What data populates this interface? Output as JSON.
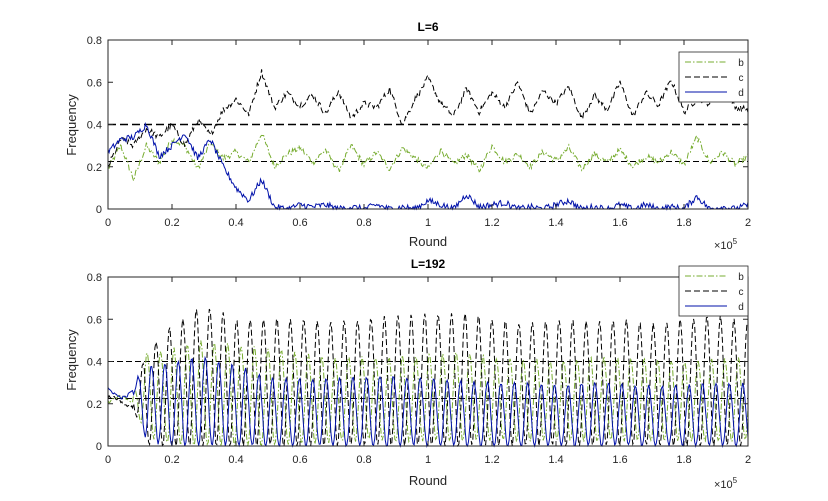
{
  "chart_data": [
    {
      "type": "line",
      "title": "L=6",
      "xlabel": "Round",
      "ylabel": "Frequency",
      "xlim": [
        0,
        200000
      ],
      "ylim": [
        0,
        0.8
      ],
      "x_ticks": [
        "0",
        "0.2",
        "0.4",
        "0.6",
        "0.8",
        "1",
        "1.2",
        "1.4",
        "1.6",
        "1.8",
        "2"
      ],
      "y_ticks": [
        "0",
        "0.2",
        "0.4",
        "0.6",
        "0.8"
      ],
      "x_exponent": "×10",
      "x_exponent_power": "5",
      "legend_position": "top-right",
      "reference_lines": [
        0.4,
        0.225
      ],
      "series": [
        {
          "name": "b",
          "color": "#77AC30",
          "style": "dash-dot",
          "x": [
            0,
            4000,
            8000,
            12000,
            16000,
            20000,
            24000,
            28000,
            32000,
            36000,
            40000,
            44000,
            48000,
            52000,
            56000,
            60000,
            64000,
            68000,
            72000,
            76000,
            80000,
            84000,
            88000,
            92000,
            96000,
            100000,
            104000,
            108000,
            112000,
            116000,
            120000,
            124000,
            128000,
            132000,
            136000,
            140000,
            144000,
            148000,
            152000,
            156000,
            160000,
            164000,
            168000,
            172000,
            176000,
            180000,
            184000,
            188000,
            192000,
            196000,
            200000
          ],
          "y": [
            0.19,
            0.3,
            0.14,
            0.3,
            0.22,
            0.33,
            0.3,
            0.19,
            0.31,
            0.24,
            0.27,
            0.22,
            0.36,
            0.2,
            0.26,
            0.29,
            0.22,
            0.28,
            0.18,
            0.3,
            0.21,
            0.27,
            0.19,
            0.29,
            0.24,
            0.19,
            0.28,
            0.21,
            0.26,
            0.18,
            0.3,
            0.22,
            0.26,
            0.2,
            0.27,
            0.23,
            0.29,
            0.19,
            0.26,
            0.22,
            0.28,
            0.2,
            0.25,
            0.22,
            0.27,
            0.21,
            0.34,
            0.22,
            0.27,
            0.21,
            0.25
          ]
        },
        {
          "name": "c",
          "color": "#000000",
          "style": "dashed",
          "x": [
            0,
            4000,
            8000,
            12000,
            16000,
            20000,
            24000,
            28000,
            32000,
            36000,
            40000,
            44000,
            48000,
            52000,
            56000,
            60000,
            64000,
            68000,
            72000,
            76000,
            80000,
            84000,
            88000,
            92000,
            96000,
            100000,
            104000,
            108000,
            112000,
            116000,
            120000,
            124000,
            128000,
            132000,
            136000,
            140000,
            144000,
            148000,
            152000,
            156000,
            160000,
            164000,
            168000,
            172000,
            176000,
            180000,
            184000,
            188000,
            192000,
            196000,
            200000
          ],
          "y": [
            0.2,
            0.33,
            0.3,
            0.38,
            0.34,
            0.4,
            0.3,
            0.42,
            0.35,
            0.47,
            0.52,
            0.45,
            0.65,
            0.48,
            0.55,
            0.49,
            0.54,
            0.45,
            0.56,
            0.43,
            0.5,
            0.48,
            0.57,
            0.4,
            0.52,
            0.62,
            0.5,
            0.44,
            0.57,
            0.46,
            0.55,
            0.48,
            0.6,
            0.45,
            0.56,
            0.5,
            0.58,
            0.43,
            0.54,
            0.47,
            0.6,
            0.44,
            0.55,
            0.49,
            0.61,
            0.46,
            0.52,
            0.5,
            0.6,
            0.48,
            0.47
          ]
        },
        {
          "name": "d",
          "color": "#0011AA",
          "style": "solid",
          "x": [
            0,
            4000,
            8000,
            12000,
            16000,
            20000,
            24000,
            28000,
            32000,
            36000,
            40000,
            44000,
            48000,
            52000,
            56000,
            60000,
            64000,
            68000,
            72000,
            76000,
            80000,
            84000,
            88000,
            92000,
            96000,
            100000,
            104000,
            108000,
            112000,
            116000,
            120000,
            124000,
            128000,
            132000,
            136000,
            140000,
            144000,
            148000,
            152000,
            156000,
            160000,
            164000,
            168000,
            172000,
            176000,
            180000,
            184000,
            188000,
            192000,
            196000,
            200000
          ],
          "y": [
            0.27,
            0.33,
            0.34,
            0.4,
            0.25,
            0.3,
            0.36,
            0.24,
            0.33,
            0.2,
            0.1,
            0.04,
            0.14,
            0.01,
            0.0,
            0.02,
            0.01,
            0.02,
            0.0,
            0.01,
            0.0,
            0.02,
            0.0,
            0.01,
            0.0,
            0.04,
            0.02,
            0.0,
            0.07,
            0.01,
            0.02,
            0.03,
            0.0,
            0.01,
            0.0,
            0.02,
            0.04,
            0.0,
            0.01,
            0.0,
            0.02,
            0.0,
            0.02,
            0.0,
            0.01,
            0.0,
            0.06,
            0.0,
            0.01,
            0.0,
            0.02
          ]
        }
      ]
    },
    {
      "type": "line",
      "title": "L=192",
      "xlabel": "Round",
      "ylabel": "Frequency",
      "xlim": [
        0,
        200000
      ],
      "ylim": [
        0,
        0.8
      ],
      "x_ticks": [
        "0",
        "0.2",
        "0.4",
        "0.6",
        "0.8",
        "1",
        "1.2",
        "1.4",
        "1.6",
        "1.8",
        "2"
      ],
      "y_ticks": [
        "0",
        "0.2",
        "0.4",
        "0.6",
        "0.8"
      ],
      "x_exponent": "×10",
      "x_exponent_power": "5",
      "legend_position": "top-right",
      "reference_lines": [
        0.4,
        0.225
      ],
      "oscillation": {
        "start_round": 8000,
        "period_rounds": 4200
      },
      "series": [
        {
          "name": "b",
          "color": "#77AC30",
          "style": "dash-dot",
          "x": [
            0,
            8000,
            12000,
            20000,
            30000,
            40000,
            50000,
            60000,
            70000,
            80000,
            90000,
            100000,
            110000,
            120000,
            130000,
            140000,
            150000,
            160000,
            170000,
            180000,
            190000,
            200000
          ],
          "peak": [
            0.22,
            0.25,
            0.44,
            0.46,
            0.5,
            0.48,
            0.46,
            0.44,
            0.42,
            0.42,
            0.42,
            0.43,
            0.44,
            0.42,
            0.41,
            0.4,
            0.42,
            0.42,
            0.41,
            0.4,
            0.41,
            0.42
          ],
          "trough": [
            0.2,
            0.19,
            0.05,
            0.0,
            0.0,
            0.0,
            0.0,
            0.01,
            0.02,
            0.03,
            0.02,
            0.03,
            0.02,
            0.03,
            0.02,
            0.03,
            0.02,
            0.03,
            0.02,
            0.03,
            0.02,
            0.03
          ]
        },
        {
          "name": "c",
          "color": "#000000",
          "style": "dashed",
          "x": [
            0,
            8000,
            12000,
            20000,
            30000,
            40000,
            50000,
            60000,
            70000,
            80000,
            90000,
            100000,
            110000,
            120000,
            130000,
            140000,
            150000,
            160000,
            170000,
            180000,
            190000,
            200000
          ],
          "peak": [
            0.23,
            0.24,
            0.45,
            0.57,
            0.67,
            0.6,
            0.6,
            0.6,
            0.59,
            0.6,
            0.62,
            0.62,
            0.63,
            0.6,
            0.58,
            0.6,
            0.59,
            0.6,
            0.58,
            0.6,
            0.62,
            0.58
          ],
          "trough": [
            0.2,
            0.18,
            0.0,
            0.0,
            0.0,
            0.0,
            0.0,
            0.0,
            0.0,
            0.0,
            0.0,
            0.0,
            0.0,
            0.0,
            0.0,
            0.0,
            0.0,
            0.0,
            0.0,
            0.0,
            0.0,
            0.0
          ]
        },
        {
          "name": "d",
          "color": "#0011AA",
          "style": "solid",
          "x": [
            0,
            8000,
            12000,
            20000,
            30000,
            40000,
            50000,
            60000,
            70000,
            80000,
            90000,
            100000,
            110000,
            120000,
            130000,
            140000,
            150000,
            160000,
            170000,
            180000,
            190000,
            200000
          ],
          "peak": [
            0.28,
            0.3,
            0.38,
            0.4,
            0.42,
            0.38,
            0.32,
            0.32,
            0.32,
            0.33,
            0.33,
            0.32,
            0.31,
            0.3,
            0.3,
            0.29,
            0.3,
            0.3,
            0.28,
            0.29,
            0.3,
            0.29
          ],
          "trough": [
            0.24,
            0.22,
            0.02,
            0.0,
            0.0,
            0.0,
            0.0,
            0.0,
            0.0,
            0.0,
            0.0,
            0.0,
            0.0,
            0.0,
            0.0,
            0.0,
            0.0,
            0.0,
            0.0,
            0.0,
            0.0,
            0.0
          ]
        }
      ]
    }
  ]
}
